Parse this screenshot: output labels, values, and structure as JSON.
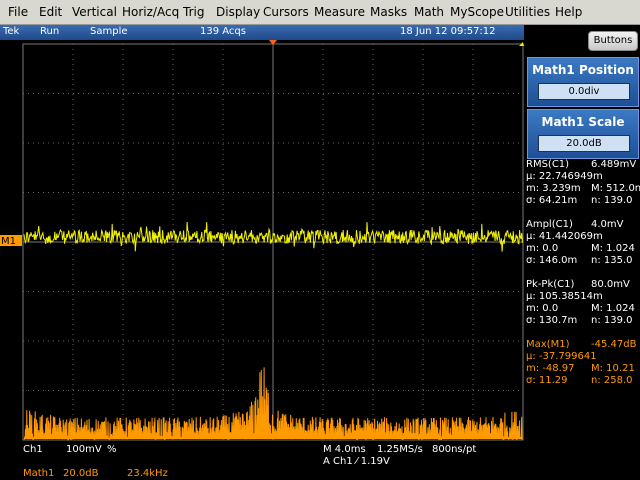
{
  "menu": [
    "File",
    "Edit",
    "Vertical",
    "Horiz/Acq",
    "Trig",
    "Display",
    "Cursors",
    "Measure",
    "Masks",
    "Math",
    "MyScope",
    "Utilities",
    "Help"
  ],
  "status": {
    "brand": "Tek",
    "state": "Run",
    "mode": "Sample",
    "acqs": "139 Acqs",
    "datetime": "18 Jun 12 09:57:12"
  },
  "buttons": "Buttons",
  "controls": [
    {
      "label": "Math1 Position",
      "value": "0.0div"
    },
    {
      "label": "Math1 Scale",
      "value": "20.0dB"
    }
  ],
  "measurements": [
    {
      "name": "RMS(C1)",
      "value": "6.489mV",
      "mean": "μ: 22.746949m",
      "min": "m: 3.239m",
      "max": "M: 512.0n",
      "sd": "σ: 64.21m",
      "n": "n: 139.0"
    },
    {
      "name": "Ampl(C1)",
      "value": "4.0mV",
      "mean": "μ: 41.442069m",
      "min": "m: 0.0",
      "max": "M: 1.024",
      "sd": "σ: 146.0m",
      "n": "n: 135.0"
    },
    {
      "name": "Pk-Pk(C1)",
      "value": "80.0mV",
      "mean": "μ: 105.38514m",
      "min": "m: 0.0",
      "max": "M: 1.024",
      "sd": "σ: 130.7m",
      "n": "n: 139.0"
    },
    {
      "name": "Max(M1)",
      "value": "-45.47dB",
      "mean": "μ: -37.799641",
      "min": "m: -48.97",
      "max": "M: 10.21",
      "sd": "σ: 11.29",
      "n": "n: 258.0"
    }
  ],
  "marker": "M1",
  "readout": {
    "ch1": "Ch1",
    "ch1_scale": "100mV",
    "ch1_coupling": "%",
    "timebase": "M 4.0ms",
    "sample_rate": "1.25MS/s",
    "resolution": "800ns/pt",
    "trigger": "A Ch1 ⁄ 1.19V",
    "math": "Math1",
    "math_scale": "20.0dB",
    "math_freq": "23.4kHz"
  }
}
